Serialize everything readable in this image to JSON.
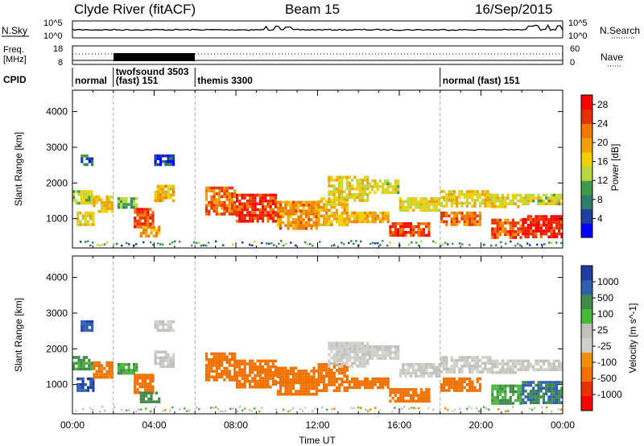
{
  "header": {
    "station": "Clyde River (fitACF)",
    "beam": "Beam 15",
    "date": "16/Sep/2015"
  },
  "noise_panel": {
    "left_label": "N.Sky",
    "right_label": "N.Search",
    "top_tick": "10^5",
    "bottom_tick": "10^0"
  },
  "freq_panel": {
    "left_label_1": "Freq.",
    "left_label_2": "[MHz]",
    "right_label": "Nave",
    "left_ticks": [
      "18",
      "8"
    ],
    "right_ticks": [
      "60",
      "0"
    ]
  },
  "cpid": {
    "label": "CPID",
    "segments": [
      {
        "name": "normal",
        "start_h": 0.0,
        "end_h": 2.0
      },
      {
        "name": "twofsound 3503",
        "name2": "(fast) 151",
        "start_h": 2.0,
        "end_h": 6.0
      },
      {
        "name": "themis 3300",
        "start_h": 6.0,
        "end_h": 18.0
      },
      {
        "name": "normal (fast) 151",
        "start_h": 18.0,
        "end_h": 24.0
      }
    ]
  },
  "colors": {
    "power_scale": [
      "#0000ff",
      "#1f3fa0",
      "#2e7d6b",
      "#3f9a4b",
      "#b8d640",
      "#f0d000",
      "#f0a000",
      "#f07800",
      "#e83000",
      "#ff0000"
    ],
    "velocity_scale": [
      "#1f3fa0",
      "#2f5fb0",
      "#3f8a4a",
      "#49b83a",
      "#c0c0bc",
      "#cfcfcb",
      "#f09000",
      "#f07000",
      "#ee3000",
      "#ff0000"
    ]
  },
  "chart_data": [
    {
      "type": "heatmap",
      "name": "power",
      "xlabel": "",
      "ylabel": "Slant Range [km]",
      "xlim": [
        0,
        24
      ],
      "ylim": [
        180,
        4600
      ],
      "yticks": [
        "1000",
        "2000",
        "3000",
        "4000"
      ],
      "colorbar": {
        "label": "Power [dB]",
        "ticks": [
          "4",
          "8",
          "12",
          "16",
          "20",
          "24",
          "28"
        ],
        "range": [
          0,
          30
        ]
      },
      "bands": [
        {
          "x0": 0.0,
          "x1": 1.0,
          "r0": 1400,
          "r1": 1800,
          "v": 14
        },
        {
          "x0": 0.2,
          "x1": 1.0,
          "r0": 850,
          "r1": 1200,
          "v": 16
        },
        {
          "x0": 0.4,
          "x1": 1.0,
          "r0": 2500,
          "r1": 2800,
          "v": 6
        },
        {
          "x0": 1.0,
          "x1": 1.9,
          "r0": 1200,
          "r1": 1650,
          "v": 17
        },
        {
          "x0": 2.2,
          "x1": 3.2,
          "r0": 1300,
          "r1": 1600,
          "v": 12
        },
        {
          "x0": 3.0,
          "x1": 4.0,
          "r0": 800,
          "r1": 1300,
          "v": 25
        },
        {
          "x0": 3.3,
          "x1": 4.2,
          "r0": 500,
          "r1": 800,
          "v": 20
        },
        {
          "x0": 4.0,
          "x1": 5.0,
          "r0": 1500,
          "r1": 1950,
          "v": 18
        },
        {
          "x0": 4.0,
          "x1": 5.0,
          "r0": 2500,
          "r1": 2800,
          "v": 4
        },
        {
          "x0": 6.5,
          "x1": 8.0,
          "r0": 1100,
          "r1": 1900,
          "v": 23
        },
        {
          "x0": 8.0,
          "x1": 10.0,
          "r0": 900,
          "r1": 1700,
          "v": 26
        },
        {
          "x0": 10.0,
          "x1": 12.0,
          "r0": 700,
          "r1": 1500,
          "v": 21
        },
        {
          "x0": 12.0,
          "x1": 13.5,
          "r0": 800,
          "r1": 1600,
          "v": 18
        },
        {
          "x0": 12.5,
          "x1": 14.5,
          "r0": 1500,
          "r1": 2200,
          "v": 16
        },
        {
          "x0": 14.5,
          "x1": 16.0,
          "r0": 1700,
          "r1": 2100,
          "v": 15
        },
        {
          "x0": 13.5,
          "x1": 15.5,
          "r0": 900,
          "r1": 1200,
          "v": 19
        },
        {
          "x0": 15.5,
          "x1": 17.5,
          "r0": 500,
          "r1": 900,
          "v": 25
        },
        {
          "x0": 16.0,
          "x1": 18.0,
          "r0": 1200,
          "r1": 1600,
          "v": 16
        },
        {
          "x0": 18.0,
          "x1": 20.0,
          "r0": 800,
          "r1": 1200,
          "v": 23
        },
        {
          "x0": 18.0,
          "x1": 20.5,
          "r0": 1350,
          "r1": 1800,
          "v": 17
        },
        {
          "x0": 20.5,
          "x1": 22.0,
          "r0": 500,
          "r1": 1000,
          "v": 24
        },
        {
          "x0": 20.5,
          "x1": 22.0,
          "r0": 1300,
          "r1": 1700,
          "v": 16
        },
        {
          "x0": 22.0,
          "x1": 24.0,
          "r0": 500,
          "r1": 1100,
          "v": 27
        },
        {
          "x0": 22.0,
          "x1": 24.0,
          "r0": 1400,
          "r1": 1700,
          "v": 15
        }
      ]
    },
    {
      "type": "heatmap",
      "name": "velocity",
      "xlabel": "Time UT",
      "ylabel": "Slant Range [km]",
      "xlim": [
        0,
        24
      ],
      "ylim": [
        180,
        4600
      ],
      "xticks": [
        "00:00",
        "04:00",
        "08:00",
        "12:00",
        "16:00",
        "20:00",
        "00:00"
      ],
      "yticks": [
        "1000",
        "2000",
        "3000",
        "4000"
      ],
      "colorbar": {
        "label": "Velocity [m s^-1]",
        "ticks": [
          "1000",
          "500",
          "100",
          "25",
          "-25",
          "-100",
          "-500",
          "-1000"
        ]
      },
      "bands": [
        {
          "x0": 0.0,
          "x1": 1.0,
          "r0": 1400,
          "r1": 1800,
          "v": 80
        },
        {
          "x0": 0.2,
          "x1": 1.0,
          "r0": 850,
          "r1": 1200,
          "v": 700
        },
        {
          "x0": 0.4,
          "x1": 1.0,
          "r0": 2500,
          "r1": 2800,
          "v": 600
        },
        {
          "x0": 1.0,
          "x1": 1.9,
          "r0": 1200,
          "r1": 1650,
          "v": -150
        },
        {
          "x0": 2.2,
          "x1": 3.2,
          "r0": 1300,
          "r1": 1600,
          "v": 60
        },
        {
          "x0": 3.0,
          "x1": 4.0,
          "r0": 800,
          "r1": 1300,
          "v": -200
        },
        {
          "x0": 3.3,
          "x1": 4.2,
          "r0": 500,
          "r1": 800,
          "v": 150
        },
        {
          "x0": 4.0,
          "x1": 5.0,
          "r0": 1500,
          "r1": 1950,
          "v": 0
        },
        {
          "x0": 4.0,
          "x1": 5.0,
          "r0": 2500,
          "r1": 2800,
          "v": 0
        },
        {
          "x0": 6.5,
          "x1": 8.0,
          "r0": 1100,
          "r1": 1900,
          "v": -250
        },
        {
          "x0": 8.0,
          "x1": 10.0,
          "r0": 900,
          "r1": 1700,
          "v": -300
        },
        {
          "x0": 10.0,
          "x1": 12.0,
          "r0": 700,
          "r1": 1500,
          "v": -200
        },
        {
          "x0": 12.0,
          "x1": 13.5,
          "r0": 800,
          "r1": 1600,
          "v": -250
        },
        {
          "x0": 12.5,
          "x1": 14.5,
          "r0": 1500,
          "r1": 2200,
          "v": -5
        },
        {
          "x0": 14.5,
          "x1": 16.0,
          "r0": 1700,
          "r1": 2100,
          "v": 0
        },
        {
          "x0": 13.5,
          "x1": 15.5,
          "r0": 900,
          "r1": 1200,
          "v": -300
        },
        {
          "x0": 15.5,
          "x1": 17.5,
          "r0": 500,
          "r1": 900,
          "v": -300
        },
        {
          "x0": 16.0,
          "x1": 18.0,
          "r0": 1200,
          "r1": 1600,
          "v": 0
        },
        {
          "x0": 18.0,
          "x1": 20.0,
          "r0": 800,
          "r1": 1200,
          "v": -250
        },
        {
          "x0": 18.0,
          "x1": 20.5,
          "r0": 1350,
          "r1": 1800,
          "v": 0
        },
        {
          "x0": 20.5,
          "x1": 22.0,
          "r0": 500,
          "r1": 1000,
          "v": 60
        },
        {
          "x0": 20.5,
          "x1": 22.0,
          "r0": 1300,
          "r1": 1700,
          "v": 0
        },
        {
          "x0": 22.0,
          "x1": 24.0,
          "r0": 500,
          "r1": 1100,
          "v": 300
        },
        {
          "x0": 22.0,
          "x1": 24.0,
          "r0": 1400,
          "r1": 1700,
          "v": 0
        }
      ]
    }
  ]
}
